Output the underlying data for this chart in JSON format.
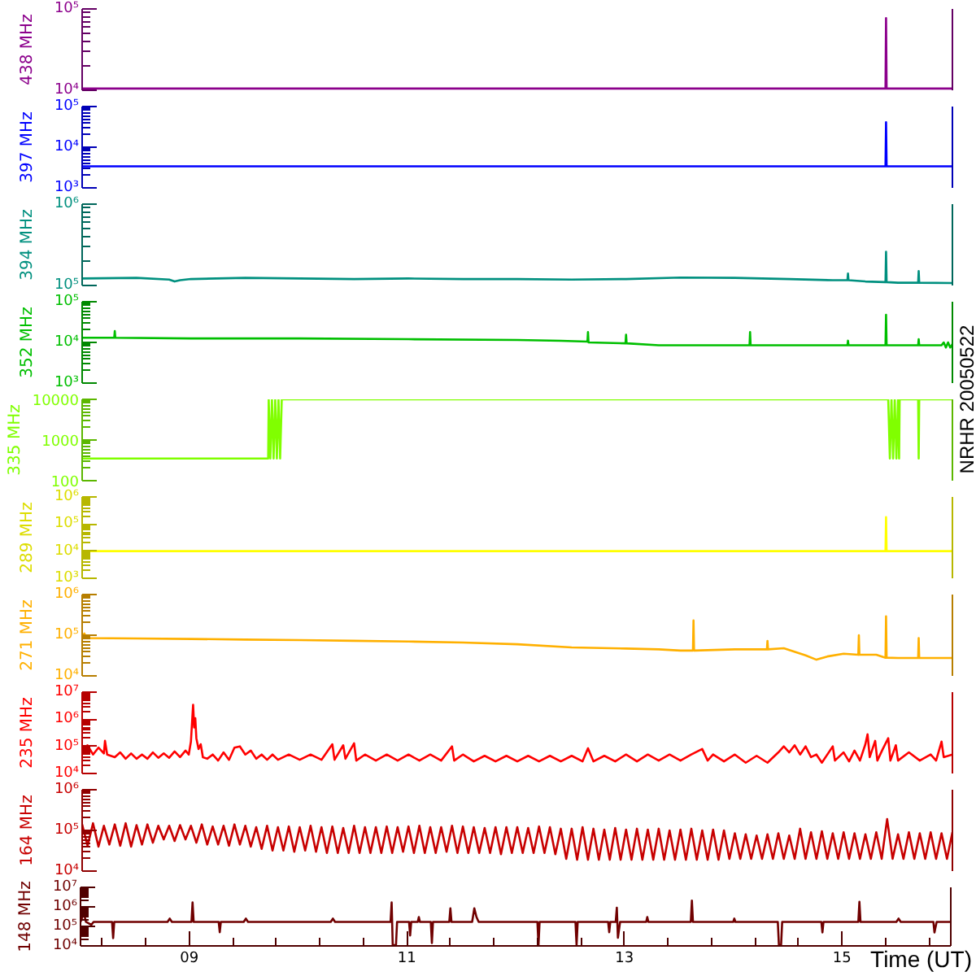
{
  "chart_data": [
    {
      "type": "line",
      "ylabel": "438 MHz",
      "log": true,
      "xlim": [
        8,
        16
      ],
      "ylim": [
        10000,
        100000
      ],
      "yticks": [
        {
          "value": 10000,
          "label": "10⁴"
        },
        {
          "value": 100000,
          "label": "10⁵"
        }
      ],
      "tick_labels": "y",
      "color": "#8c008c",
      "x": [
        8,
        15.385,
        15.39,
        15.395,
        16
      ],
      "values": [
        10500,
        10500,
        77000,
        10500,
        10500
      ]
    },
    {
      "type": "line",
      "ylabel": "397 MHz",
      "log": true,
      "xlim": [
        8,
        16
      ],
      "ylim": [
        1000,
        100000
      ],
      "yticks": [
        {
          "value": 1000,
          "label": "10³"
        },
        {
          "value": 10000,
          "label": "10⁴"
        },
        {
          "value": 100000,
          "label": "10⁵"
        }
      ],
      "tick_labels": "y",
      "color": "#0000ff",
      "x": [
        8,
        15.385,
        15.39,
        15.395,
        16
      ],
      "values": [
        3400,
        3400,
        41000,
        3400,
        3400
      ]
    },
    {
      "type": "line",
      "ylabel": "394 MHz",
      "log": true,
      "xlim": [
        8,
        16
      ],
      "ylim": [
        100000,
        1000000
      ],
      "yticks": [
        {
          "value": 100000,
          "label": "10⁵"
        },
        {
          "value": 1000000,
          "label": "10⁶"
        }
      ],
      "tick_labels": "y",
      "color": "#00907f",
      "x": [
        8,
        8.5,
        8.8,
        8.85,
        8.9,
        9,
        9.5,
        10,
        10.5,
        11,
        11.5,
        12,
        12.5,
        13,
        13.5,
        14,
        14.5,
        14.9,
        15.035,
        15.04,
        15.045,
        15.2,
        15.385,
        15.39,
        15.395,
        15.5,
        15.685,
        15.69,
        15.695,
        16
      ],
      "values": [
        122000,
        124000,
        118000,
        112000,
        116000,
        120000,
        124000,
        122000,
        120000,
        122000,
        120000,
        120000,
        118000,
        120000,
        125000,
        124000,
        120000,
        116000,
        116000,
        140000,
        116000,
        112000,
        110000,
        260000,
        110000,
        108000,
        108000,
        150000,
        108000,
        107000
      ]
    },
    {
      "type": "line",
      "ylabel": "352 MHz",
      "log": true,
      "xlim": [
        8,
        16
      ],
      "ylim": [
        1000,
        100000
      ],
      "yticks": [
        {
          "value": 1000,
          "label": "10³"
        },
        {
          "value": 10000,
          "label": "10⁴"
        },
        {
          "value": 100000,
          "label": "10⁵"
        }
      ],
      "tick_labels": "y",
      "color": "#00bf00",
      "x": [
        8,
        8.295,
        8.3,
        8.305,
        9,
        10,
        11,
        12,
        12.4,
        12.645,
        12.65,
        12.655,
        12.995,
        13,
        13.005,
        13.3,
        14.135,
        14.14,
        14.145,
        15.035,
        15.04,
        15.045,
        15.385,
        15.39,
        15.395,
        15.685,
        15.69,
        15.695,
        15.9,
        15.92,
        15.94,
        15.96,
        15.98,
        16
      ],
      "values": [
        13000,
        13000,
        19000,
        13000,
        12500,
        12500,
        12000,
        11500,
        11000,
        10500,
        18000,
        10000,
        9500,
        15500,
        9500,
        8500,
        8500,
        18000,
        8500,
        8500,
        11000,
        8500,
        8500,
        48000,
        8500,
        8500,
        12000,
        8500,
        8500,
        10000,
        7500,
        10000,
        7500,
        9000
      ]
    },
    {
      "type": "line",
      "ylabel": "335 MHz",
      "log": true,
      "xlim": [
        8,
        16
      ],
      "ylim": [
        100,
        10000
      ],
      "yticks": [
        100,
        1000,
        10000
      ],
      "tick_labels": "y",
      "color": "#80ff00",
      "x": [
        8,
        9.71,
        9.715,
        9.73,
        9.745,
        9.76,
        9.775,
        9.79,
        9.805,
        9.82,
        9.835,
        9.85,
        15.41,
        15.425,
        15.44,
        15.455,
        15.47,
        15.485,
        15.5,
        15.51,
        15.515,
        15.685,
        15.69,
        15.695,
        16
      ],
      "values": [
        350,
        350,
        10000,
        350,
        10000,
        350,
        10000,
        350,
        10000,
        350,
        10000,
        10000,
        10000,
        350,
        10000,
        350,
        10000,
        350,
        10000,
        350,
        10000,
        10000,
        350,
        10000,
        10000
      ]
    },
    {
      "type": "line",
      "ylabel": "289 MHz",
      "log": true,
      "xlim": [
        8,
        16
      ],
      "ylim": [
        1000,
        1000000
      ],
      "yticks": [
        {
          "value": 1000,
          "label": "10³"
        },
        {
          "value": 10000,
          "label": "10⁴"
        },
        {
          "value": 100000,
          "label": "10⁵"
        },
        {
          "value": 1000000,
          "label": "10⁶"
        }
      ],
      "tick_labels": "y",
      "color": "#ffff00",
      "x": [
        8,
        15.385,
        15.39,
        15.395,
        16
      ],
      "values": [
        10000,
        10000,
        180000,
        10000,
        10000
      ]
    },
    {
      "type": "line",
      "ylabel": "271 MHz",
      "log": true,
      "xlim": [
        8,
        16
      ],
      "ylim": [
        10000,
        1000000
      ],
      "yticks": [
        {
          "value": 10000,
          "label": "10⁴"
        },
        {
          "value": 100000,
          "label": "10⁵"
        },
        {
          "value": 1000000,
          "label": "10⁶"
        }
      ],
      "tick_labels": "y",
      "color": "#ffb000",
      "x": [
        8,
        8.02,
        8.04,
        8.5,
        9,
        9.5,
        10,
        10.5,
        11,
        11.5,
        12,
        12.5,
        13,
        13.3,
        13.5,
        13.615,
        13.62,
        13.625,
        14,
        14.295,
        14.3,
        14.305,
        14.45,
        14.65,
        14.75,
        14.85,
        15,
        15.135,
        15.14,
        15.145,
        15.3,
        15.385,
        15.39,
        15.395,
        15.5,
        15.685,
        15.69,
        15.695,
        16
      ],
      "values": [
        85000,
        110000,
        85000,
        83000,
        81000,
        78000,
        76000,
        73000,
        70000,
        66000,
        60000,
        50000,
        47000,
        45000,
        42000,
        42000,
        230000,
        42000,
        45000,
        45000,
        72000,
        45000,
        48000,
        32000,
        25000,
        30000,
        35000,
        33000,
        100000,
        33000,
        33000,
        28000,
        290000,
        28000,
        27500,
        27500,
        85000,
        27500,
        27500
      ]
    },
    {
      "type": "line",
      "ylabel": "235 MHz",
      "log": true,
      "xlim": [
        8,
        16
      ],
      "ylim": [
        10000,
        10000000
      ],
      "yticks": [
        {
          "value": 10000,
          "label": "10⁴"
        },
        {
          "value": 100000,
          "label": "10⁵"
        },
        {
          "value": 1000000,
          "label": "10⁶"
        },
        {
          "value": 10000000,
          "label": "10⁷"
        }
      ],
      "tick_labels": "y",
      "color": "#ff0000",
      "x": [
        8,
        8.05,
        8.1,
        8.15,
        8.2,
        8.21,
        8.23,
        8.3,
        8.35,
        8.4,
        8.45,
        8.5,
        8.55,
        8.6,
        8.65,
        8.7,
        8.75,
        8.8,
        8.85,
        8.9,
        8.95,
        8.98,
        9,
        9.02,
        9.03,
        9.04,
        9.05,
        9.07,
        9.09,
        9.11,
        9.15,
        9.2,
        9.25,
        9.3,
        9.35,
        9.4,
        9.45,
        9.5,
        9.55,
        9.6,
        9.65,
        9.7,
        9.75,
        9.8,
        9.9,
        10,
        10.1,
        10.2,
        10.3,
        10.32,
        10.4,
        10.42,
        10.5,
        10.52,
        10.6,
        10.7,
        10.8,
        10.9,
        11,
        11.1,
        11.2,
        11.3,
        11.4,
        11.42,
        11.5,
        11.6,
        11.7,
        11.8,
        11.9,
        12,
        12.1,
        12.2,
        12.3,
        12.4,
        12.5,
        12.6,
        12.65,
        12.7,
        12.8,
        12.9,
        13,
        13.1,
        13.2,
        13.3,
        13.4,
        13.5,
        13.6,
        13.7,
        13.75,
        13.8,
        13.9,
        14,
        14.1,
        14.2,
        14.3,
        14.4,
        14.45,
        14.5,
        14.55,
        14.6,
        14.65,
        14.7,
        14.75,
        14.8,
        14.9,
        14.92,
        15,
        15.05,
        15.1,
        15.15,
        15.2,
        15.22,
        15.24,
        15.29,
        15.31,
        15.36,
        15.41,
        15.43,
        15.48,
        15.5,
        15.6,
        15.7,
        15.8,
        15.85,
        15.9,
        15.92,
        16
      ],
      "values": [
        70000,
        110000,
        50000,
        90000,
        55000,
        160000,
        50000,
        40000,
        60000,
        35000,
        55000,
        35000,
        50000,
        35000,
        60000,
        38000,
        55000,
        38000,
        65000,
        40000,
        70000,
        50000,
        150000,
        3400000,
        500000,
        1100000,
        200000,
        80000,
        120000,
        40000,
        35000,
        50000,
        30000,
        60000,
        32000,
        90000,
        100000,
        50000,
        70000,
        35000,
        50000,
        32000,
        50000,
        32000,
        50000,
        32000,
        50000,
        32000,
        120000,
        32000,
        110000,
        35000,
        130000,
        30000,
        50000,
        30000,
        50000,
        30000,
        50000,
        30000,
        50000,
        30000,
        100000,
        30000,
        50000,
        28000,
        45000,
        28000,
        45000,
        28000,
        45000,
        28000,
        45000,
        28000,
        45000,
        28000,
        85000,
        28000,
        45000,
        28000,
        50000,
        28000,
        50000,
        30000,
        50000,
        30000,
        50000,
        80000,
        30000,
        50000,
        28000,
        50000,
        25000,
        45000,
        25000,
        60000,
        100000,
        60000,
        110000,
        50000,
        100000,
        40000,
        50000,
        25000,
        100000,
        30000,
        60000,
        28000,
        70000,
        30000,
        120000,
        280000,
        40000,
        160000,
        30000,
        80000,
        200000,
        30000,
        110000,
        30000,
        60000,
        30000,
        50000,
        30000,
        150000,
        40000,
        50000
      ]
    },
    {
      "type": "line",
      "ylabel": "164 MHz",
      "log": true,
      "xlim": [
        8,
        16
      ],
      "ylim": [
        10000,
        1000000
      ],
      "yticks": [
        {
          "value": 10000,
          "label": "10⁴"
        },
        {
          "value": 100000,
          "label": "10⁵"
        },
        {
          "value": 1000000,
          "label": "10⁶"
        }
      ],
      "tick_labels": "y",
      "color": "#c80000",
      "x": [
        8,
        8.05,
        8.1,
        8.15,
        8.2,
        8.25,
        8.3,
        8.35,
        8.4,
        8.45,
        8.5,
        8.55,
        8.6,
        8.65,
        8.7,
        8.75,
        8.8,
        8.85,
        8.9,
        8.95,
        9,
        9.05,
        9.1,
        9.15,
        9.2,
        9.25,
        9.3,
        9.35,
        9.4,
        9.45,
        9.5,
        9.55,
        9.6,
        9.65,
        9.7,
        9.75,
        9.8,
        9.85,
        9.9,
        9.95,
        10,
        10.05,
        10.1,
        10.15,
        10.2,
        10.25,
        10.3,
        10.35,
        10.4,
        10.45,
        10.5,
        10.55,
        10.6,
        10.65,
        10.7,
        10.75,
        10.8,
        10.85,
        10.9,
        10.95,
        11,
        11.05,
        11.1,
        11.15,
        11.2,
        11.25,
        11.3,
        11.35,
        11.4,
        11.45,
        11.5,
        11.55,
        11.6,
        11.65,
        11.7,
        11.75,
        11.8,
        11.85,
        11.9,
        11.95,
        12,
        12.05,
        12.1,
        12.15,
        12.2,
        12.25,
        12.3,
        12.35,
        12.4,
        12.45,
        12.5,
        12.55,
        12.6,
        12.65,
        12.7,
        12.75,
        12.8,
        12.85,
        12.9,
        12.95,
        13,
        13.05,
        13.1,
        13.15,
        13.2,
        13.25,
        13.3,
        13.35,
        13.4,
        13.45,
        13.5,
        13.55,
        13.6,
        13.65,
        13.7,
        13.75,
        13.8,
        13.85,
        13.9,
        13.95,
        14,
        14.05,
        14.1,
        14.15,
        14.2,
        14.25,
        14.3,
        14.35,
        14.4,
        14.45,
        14.5,
        14.55,
        14.6,
        14.65,
        14.7,
        14.75,
        14.8,
        14.85,
        14.9,
        14.95,
        15,
        15.05,
        15.1,
        15.15,
        15.2,
        15.25,
        15.3,
        15.35,
        15.4,
        15.45,
        15.5,
        15.55,
        15.6,
        15.65,
        15.7,
        15.75,
        15.8,
        15.85,
        15.9,
        15.95,
        16
      ],
      "values": [
        140000,
        42000,
        150000,
        40000,
        130000,
        45000,
        140000,
        42000,
        150000,
        40000,
        135000,
        45000,
        140000,
        50000,
        130000,
        60000,
        130000,
        55000,
        135000,
        60000,
        130000,
        50000,
        140000,
        45000,
        125000,
        45000,
        130000,
        42000,
        140000,
        45000,
        130000,
        40000,
        120000,
        35000,
        130000,
        32000,
        120000,
        32000,
        125000,
        30000,
        120000,
        32000,
        130000,
        30000,
        120000,
        28000,
        125000,
        28000,
        115000,
        28000,
        130000,
        28000,
        120000,
        28000,
        120000,
        28000,
        125000,
        28000,
        120000,
        30000,
        125000,
        28000,
        130000,
        28000,
        120000,
        28000,
        120000,
        30000,
        130000,
        28000,
        125000,
        28000,
        120000,
        28000,
        115000,
        28000,
        120000,
        26000,
        120000,
        28000,
        120000,
        28000,
        115000,
        28000,
        125000,
        28000,
        120000,
        26000,
        110000,
        20000,
        110000,
        19000,
        120000,
        19000,
        110000,
        19000,
        105000,
        19000,
        115000,
        19000,
        105000,
        19000,
        110000,
        19000,
        105000,
        19000,
        110000,
        19000,
        100000,
        19000,
        105000,
        19000,
        110000,
        19000,
        100000,
        19000,
        105000,
        19000,
        100000,
        20000,
        85000,
        20000,
        80000,
        20000,
        75000,
        20000,
        80000,
        20000,
        85000,
        20000,
        75000,
        20000,
        110000,
        20000,
        90000,
        20000,
        95000,
        20000,
        85000,
        20000,
        90000,
        20000,
        85000,
        20000,
        80000,
        20000,
        90000,
        20000,
        190000,
        20000,
        80000,
        20000,
        90000,
        20000,
        85000,
        20000,
        90000,
        20000,
        85000,
        20000,
        90000
      ]
    },
    {
      "type": "line",
      "ylabel": "148 MHz",
      "xlabel": "Time (UT)",
      "log": true,
      "xlim": [
        8,
        16
      ],
      "ylim": [
        10000,
        10000000
      ],
      "xticks": [
        {
          "value": 9,
          "label": "09"
        },
        {
          "value": 11,
          "label": "11"
        },
        {
          "value": 13,
          "label": "13"
        },
        {
          "value": 15,
          "label": "15"
        }
      ],
      "yticks": [
        {
          "value": 10000,
          "label": "10⁴"
        },
        {
          "value": 100000,
          "label": "10⁵"
        },
        {
          "value": 1000000,
          "label": "10⁶"
        },
        {
          "value": 10000000,
          "label": "10⁷"
        }
      ],
      "color": "#700000",
      "x": [
        8,
        8.03,
        8.05,
        8.1,
        8.12,
        8.29,
        8.3,
        8.31,
        8.8,
        8.82,
        8.84,
        9.02,
        9.03,
        9.04,
        9.27,
        9.28,
        9.29,
        9.5,
        9.52,
        9.54,
        10.3,
        10.32,
        10.34,
        10.85,
        10.86,
        10.87,
        10.9,
        10.91,
        11.02,
        11.03,
        11.04,
        11.1,
        11.11,
        11.12,
        11.22,
        11.23,
        11.24,
        11.39,
        11.4,
        11.41,
        11.6,
        11.62,
        11.64,
        11.66,
        12.2,
        12.21,
        12.22,
        12.55,
        12.56,
        12.57,
        12.85,
        12.86,
        12.87,
        12.92,
        12.93,
        12.94,
        12.96,
        13.2,
        13.21,
        13.22,
        13.61,
        13.62,
        13.63,
        14,
        14.01,
        14.02,
        14.41,
        14.42,
        14.44,
        14.45,
        14.81,
        14.82,
        14.83,
        15.15,
        15.16,
        15.17,
        15.5,
        15.52,
        15.54,
        15.84,
        15.85,
        15.87,
        16
      ],
      "values": [
        170000,
        500000,
        170000,
        120000,
        170000,
        170000,
        25000,
        170000,
        170000,
        250000,
        170000,
        170000,
        1700000,
        170000,
        170000,
        50000,
        170000,
        170000,
        250000,
        170000,
        170000,
        250000,
        170000,
        170000,
        1700000,
        11000,
        11000,
        170000,
        170000,
        34000,
        170000,
        170000,
        300000,
        170000,
        170000,
        14000,
        170000,
        170000,
        840000,
        170000,
        170000,
        840000,
        300000,
        170000,
        170000,
        11000,
        170000,
        170000,
        11000,
        170000,
        170000,
        50000,
        170000,
        170000,
        900000,
        26000,
        170000,
        170000,
        300000,
        170000,
        170000,
        2100000,
        170000,
        170000,
        250000,
        170000,
        170000,
        11000,
        11000,
        170000,
        170000,
        49000,
        170000,
        170000,
        1800000,
        170000,
        170000,
        250000,
        170000,
        170000,
        49000,
        170000,
        170000
      ]
    },
    {
      "type": "other",
      "title": "NRHR 20050522"
    }
  ]
}
